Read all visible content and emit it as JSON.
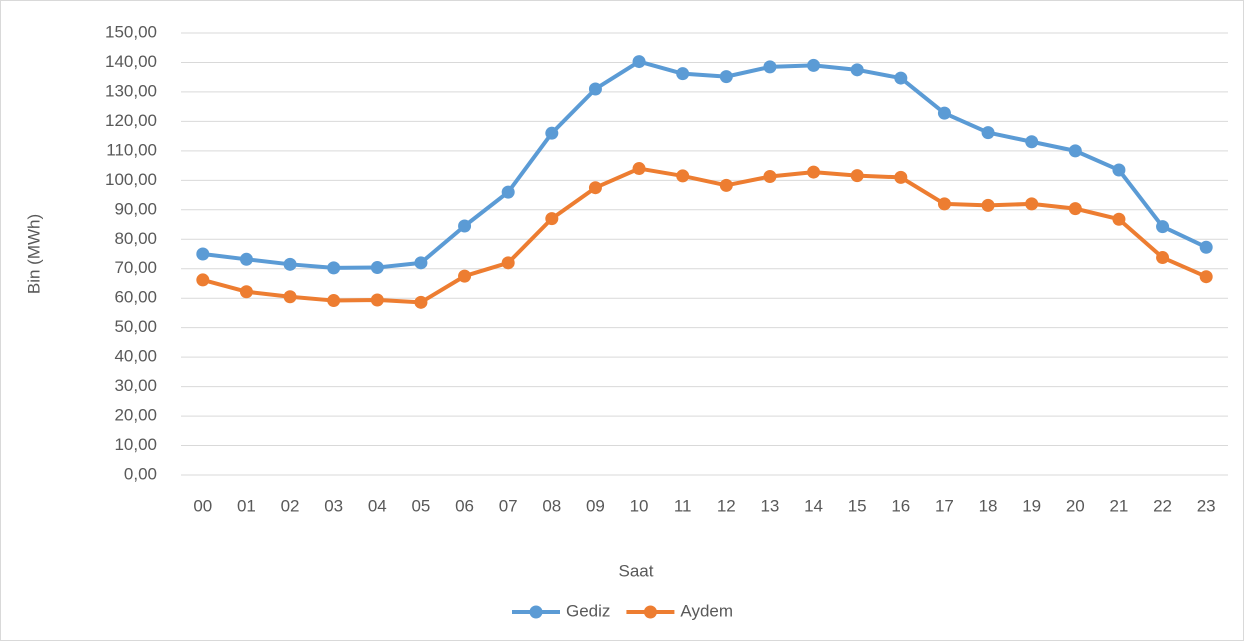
{
  "chart_data": {
    "type": "line",
    "x_label": "Saat",
    "y_label": "Bin (MWh)",
    "categories": [
      "00",
      "01",
      "02",
      "03",
      "04",
      "05",
      "06",
      "07",
      "08",
      "09",
      "10",
      "11",
      "12",
      "13",
      "14",
      "15",
      "16",
      "17",
      "18",
      "19",
      "20",
      "21",
      "22",
      "23"
    ],
    "series": [
      {
        "name": "Gediz",
        "color": "#5b9bd5",
        "values": [
          75,
          73.2,
          71.5,
          70.3,
          70.4,
          72,
          84.5,
          96,
          116,
          131,
          140.3,
          136.2,
          135.2,
          138.5,
          139,
          137.5,
          134.7,
          122.8,
          116.2,
          113.1,
          110,
          103.5,
          84.3,
          77.3
        ]
      },
      {
        "name": "Aydem",
        "color": "#ed7d31",
        "values": [
          66.2,
          62.2,
          60.5,
          59.2,
          59.4,
          58.6,
          67.5,
          72,
          87,
          97.5,
          104,
          101.5,
          98.3,
          101.3,
          102.8,
          101.6,
          101,
          92,
          91.5,
          92,
          90.4,
          86.8,
          73.8,
          67.3
        ]
      }
    ],
    "ylim": [
      0,
      150
    ],
    "yticks": [
      {
        "value": 0,
        "label": "0,00"
      },
      {
        "value": 10,
        "label": "10,00"
      },
      {
        "value": 20,
        "label": "20,00"
      },
      {
        "value": 30,
        "label": "30,00"
      },
      {
        "value": 40,
        "label": "40,00"
      },
      {
        "value": 50,
        "label": "50,00"
      },
      {
        "value": 60,
        "label": "60,00"
      },
      {
        "value": 70,
        "label": "70,00"
      },
      {
        "value": 80,
        "label": "80,00"
      },
      {
        "value": 90,
        "label": "90,00"
      },
      {
        "value": 100,
        "label": "100,00"
      },
      {
        "value": 110,
        "label": "110,00"
      },
      {
        "value": 120,
        "label": "120,00"
      },
      {
        "value": 130,
        "label": "130,00"
      },
      {
        "value": 140,
        "label": "140,00"
      },
      {
        "value": 150,
        "label": "150,00"
      }
    ],
    "grid": true,
    "legend": "bottom"
  }
}
